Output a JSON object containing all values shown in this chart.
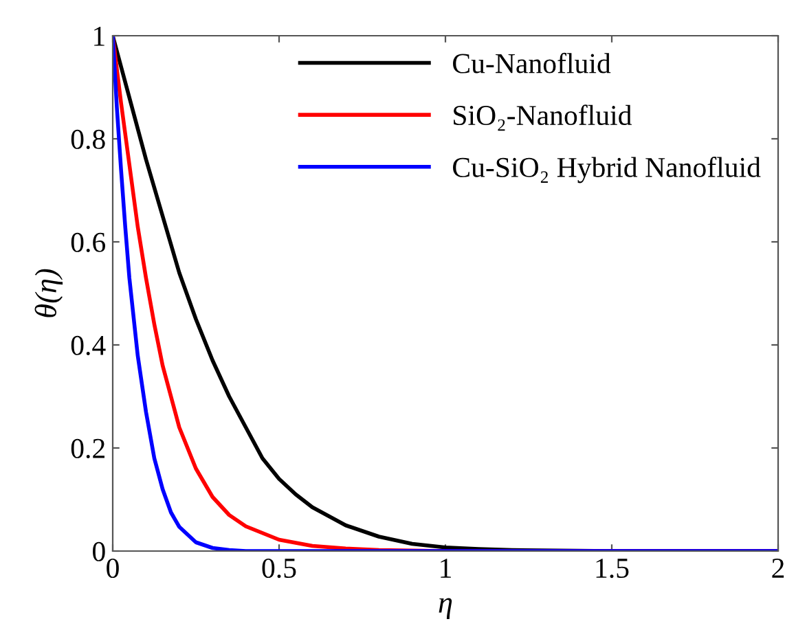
{
  "chart_data": {
    "type": "line",
    "xlabel": "η",
    "ylabel": "θ(η)",
    "xlim": [
      0,
      2
    ],
    "ylim": [
      0,
      1
    ],
    "xticks": [
      0,
      0.5,
      1,
      1.5,
      2
    ],
    "yticks": [
      0,
      0.2,
      0.4,
      0.6,
      0.8,
      1
    ],
    "grid": false,
    "legend": "top right",
    "marker": "none",
    "line_style": "solid",
    "series": [
      {
        "name": "Cu-Nanofluid",
        "color": "#000000",
        "x": [
          0,
          0.05,
          0.1,
          0.15,
          0.2,
          0.25,
          0.3,
          0.35,
          0.4,
          0.45,
          0.5,
          0.55,
          0.6,
          0.7,
          0.8,
          0.9,
          1,
          1.1,
          1.2,
          1.5,
          2
        ],
        "values": [
          1,
          0.88,
          0.76,
          0.65,
          0.54,
          0.45,
          0.37,
          0.3,
          0.24,
          0.18,
          0.14,
          0.11,
          0.085,
          0.05,
          0.028,
          0.014,
          0.007,
          0.004,
          0.002,
          0,
          0
        ]
      },
      {
        "name": "SiO₂-Nanofluid",
        "color": "#ff0000",
        "x": [
          0,
          0.025,
          0.05,
          0.075,
          0.1,
          0.125,
          0.15,
          0.2,
          0.25,
          0.3,
          0.35,
          0.4,
          0.5,
          0.6,
          0.7,
          0.8,
          1,
          1.5,
          2
        ],
        "values": [
          1,
          0.87,
          0.75,
          0.63,
          0.53,
          0.44,
          0.36,
          0.24,
          0.16,
          0.105,
          0.07,
          0.048,
          0.022,
          0.01,
          0.005,
          0.002,
          0,
          0,
          0
        ]
      },
      {
        "name": "Cu-SiO₂ Hybrid Nanofluid",
        "color": "#0000ff",
        "x": [
          0,
          0.0125,
          0.025,
          0.0375,
          0.05,
          0.075,
          0.1,
          0.125,
          0.15,
          0.175,
          0.2,
          0.25,
          0.3,
          0.35,
          0.4,
          0.5,
          1,
          2
        ],
        "values": [
          1,
          0.86,
          0.74,
          0.63,
          0.53,
          0.38,
          0.27,
          0.18,
          0.12,
          0.075,
          0.047,
          0.017,
          0.006,
          0.002,
          0,
          0,
          0,
          0
        ]
      }
    ]
  }
}
